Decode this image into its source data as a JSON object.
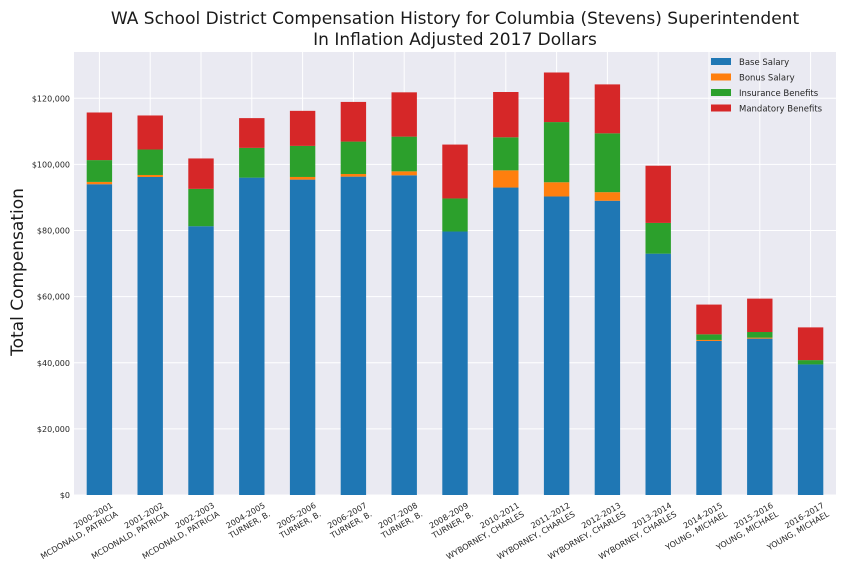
{
  "chart_data": {
    "type": "bar",
    "stacked": true,
    "title": "WA School District Compensation History for Columbia (Stevens) Superintendent",
    "subtitle": "In Inflation Adjusted 2017 Dollars",
    "ylabel": "Total Compensation",
    "xlabel": "",
    "ylim": [
      0,
      134000
    ],
    "yticks": [
      0,
      20000,
      40000,
      60000,
      80000,
      100000,
      120000
    ],
    "ytick_labels": [
      "$0",
      "$20,000",
      "$40,000",
      "$60,000",
      "$80,000",
      "$100,000",
      "$120,000"
    ],
    "grid": true,
    "legend_position": "top-right",
    "categories": [
      [
        "2000-2001",
        "MCDONALD, PATRICIA"
      ],
      [
        "2001-2002",
        "MCDONALD, PATRICIA"
      ],
      [
        "2002-2003",
        "MCDONALD, PATRICIA"
      ],
      [
        "2004-2005",
        "TURNER, B."
      ],
      [
        "2005-2006",
        "TURNER, B."
      ],
      [
        "2006-2007",
        "TURNER, B."
      ],
      [
        "2007-2008",
        "TURNER, B."
      ],
      [
        "2008-2009",
        "TURNER, B."
      ],
      [
        "2010-2011",
        "WYBORNEY, CHARLES"
      ],
      [
        "2011-2012",
        "WYBORNEY, CHARLES"
      ],
      [
        "2012-2013",
        "WYBORNEY, CHARLES"
      ],
      [
        "2013-2014",
        "WYBORNEY, CHARLES"
      ],
      [
        "2014-2015",
        "YOUNG, MICHAEL"
      ],
      [
        "2015-2016",
        "YOUNG, MICHAEL"
      ],
      [
        "2016-2017",
        "YOUNG, MICHAEL"
      ]
    ],
    "series": [
      {
        "name": "Base Salary",
        "color": "#1f77b4",
        "values": [
          94000,
          96200,
          81300,
          96000,
          95400,
          96300,
          96700,
          79700,
          93000,
          90300,
          89000,
          73000,
          46600,
          47300,
          39500
        ]
      },
      {
        "name": "Bonus Salary",
        "color": "#ff7f0e",
        "values": [
          700,
          600,
          0,
          0,
          800,
          800,
          1200,
          0,
          5200,
          4300,
          2600,
          0,
          300,
          300,
          0
        ]
      },
      {
        "name": "Insurance Benefits",
        "color": "#2ca02c",
        "values": [
          6600,
          7700,
          11300,
          9000,
          9400,
          9800,
          10500,
          10000,
          10000,
          18200,
          17800,
          9300,
          1700,
          1700,
          1300
        ]
      },
      {
        "name": "Mandatory Benefits",
        "color": "#d62728",
        "values": [
          14400,
          10300,
          9200,
          9000,
          10600,
          12000,
          13400,
          16300,
          13700,
          15000,
          14800,
          17300,
          9000,
          10100,
          9900
        ]
      }
    ]
  }
}
